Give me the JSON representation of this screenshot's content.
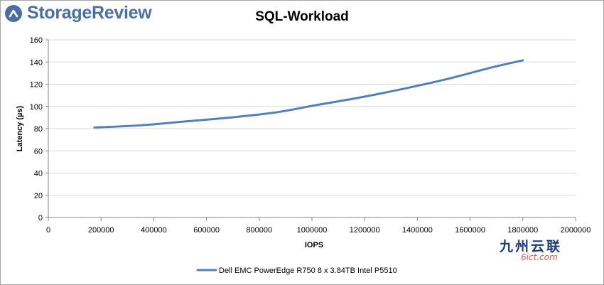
{
  "brand": {
    "name": "StorageReview",
    "color": "#4a6fa5"
  },
  "watermark": {
    "cn": "九州云联",
    "en": "6ict.com"
  },
  "chart_data": {
    "type": "line",
    "title": "SQL-Workload",
    "xlabel": "IOPS",
    "ylabel": "Latency (µs)",
    "xlim": [
      0,
      2000000
    ],
    "ylim": [
      0,
      160
    ],
    "x_ticks": [
      0,
      200000,
      400000,
      600000,
      800000,
      1000000,
      1200000,
      1400000,
      1600000,
      1800000,
      2000000
    ],
    "y_ticks": [
      0,
      20,
      40,
      60,
      80,
      100,
      120,
      140,
      160
    ],
    "grid": true,
    "legend_position": "bottom",
    "series": [
      {
        "name": "Dell EMC PowerEdge R750 8 x 3.84TB Intel P5510",
        "color": "#4f81bd",
        "x": [
          175000,
          350000,
          520000,
          690000,
          860000,
          1000000,
          1170000,
          1340000,
          1510000,
          1680000,
          1800000
        ],
        "y": [
          81,
          83,
          86.5,
          90,
          94.5,
          100.5,
          107.5,
          115.5,
          124.5,
          135,
          141.5
        ]
      }
    ]
  }
}
